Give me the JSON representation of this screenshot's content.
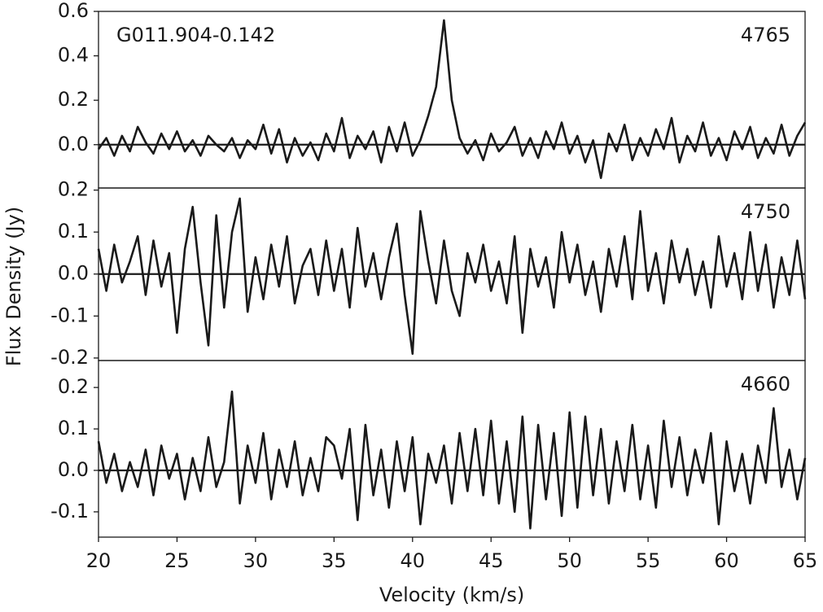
{
  "chart_data": [
    {
      "type": "line",
      "source": "G011.904-0.142",
      "label": "4765",
      "color": "#1a1a1a",
      "xlim": [
        20,
        65
      ],
      "ylim": [
        -0.195,
        0.6
      ],
      "yticks": [
        {
          "value": 0,
          "label": "0.0"
        },
        {
          "value": 0.2,
          "label": "0.2"
        },
        {
          "value": 0.4,
          "label": "0.4"
        },
        {
          "value": 0.6,
          "label": "0.6"
        }
      ],
      "x": [
        20,
        20.5,
        21,
        21.5,
        22,
        22.5,
        23,
        23.5,
        24,
        24.5,
        25,
        25.5,
        26,
        26.5,
        27,
        27.5,
        28,
        28.5,
        29,
        29.5,
        30,
        30.5,
        31,
        31.5,
        32,
        32.5,
        33,
        33.5,
        34,
        34.5,
        35,
        35.5,
        36,
        36.5,
        37,
        37.5,
        38,
        38.5,
        39,
        39.5,
        40,
        40.5,
        41,
        41.5,
        42,
        42.5,
        43,
        43.5,
        44,
        44.5,
        45,
        45.5,
        46,
        46.5,
        47,
        47.5,
        48,
        48.5,
        49,
        49.5,
        50,
        50.5,
        51,
        51.5,
        52,
        52.5,
        53,
        53.5,
        54,
        54.5,
        55,
        55.5,
        56,
        56.5,
        57,
        57.5,
        58,
        58.5,
        59,
        59.5,
        60,
        60.5,
        61,
        61.5,
        62,
        62.5,
        63,
        63.5,
        64,
        64.5,
        65
      ],
      "values": [
        -0.02,
        0.03,
        -0.05,
        0.04,
        -0.03,
        0.08,
        0.01,
        -0.04,
        0.05,
        -0.02,
        0.06,
        -0.03,
        0.02,
        -0.05,
        0.04,
        0.0,
        -0.03,
        0.03,
        -0.06,
        0.02,
        -0.02,
        0.09,
        -0.04,
        0.07,
        -0.08,
        0.03,
        -0.05,
        0.01,
        -0.07,
        0.05,
        -0.03,
        0.12,
        -0.06,
        0.04,
        -0.02,
        0.06,
        -0.08,
        0.08,
        -0.03,
        0.1,
        -0.05,
        0.02,
        0.13,
        0.26,
        0.56,
        0.2,
        0.03,
        -0.04,
        0.02,
        -0.07,
        0.05,
        -0.03,
        0.01,
        0.08,
        -0.05,
        0.03,
        -0.06,
        0.06,
        -0.02,
        0.1,
        -0.04,
        0.04,
        -0.08,
        0.02,
        -0.15,
        0.05,
        -0.03,
        0.09,
        -0.07,
        0.03,
        -0.05,
        0.07,
        -0.02,
        0.12,
        -0.08,
        0.04,
        -0.03,
        0.1,
        -0.05,
        0.03,
        -0.07,
        0.06,
        -0.02,
        0.08,
        -0.06,
        0.03,
        -0.04,
        0.09,
        -0.05,
        0.04,
        0.1
      ]
    },
    {
      "type": "line",
      "label": "4750",
      "ylabel": "Flux Density (Jy)",
      "color": "#1a1a1a",
      "xlim": [
        20,
        65
      ],
      "ylim": [
        -0.206,
        0.205
      ],
      "yticks": [
        {
          "value": -0.2,
          "label": "-0.2"
        },
        {
          "value": -0.1,
          "label": "-0.1"
        },
        {
          "value": 0,
          "label": "0.0"
        },
        {
          "value": 0.1,
          "label": "0.1"
        },
        {
          "value": 0.2,
          "label": "0.2"
        }
      ],
      "x": [
        20,
        20.5,
        21,
        21.5,
        22,
        22.5,
        23,
        23.5,
        24,
        24.5,
        25,
        25.5,
        26,
        26.5,
        27,
        27.5,
        28,
        28.5,
        29,
        29.5,
        30,
        30.5,
        31,
        31.5,
        32,
        32.5,
        33,
        33.5,
        34,
        34.5,
        35,
        35.5,
        36,
        36.5,
        37,
        37.5,
        38,
        38.5,
        39,
        39.5,
        40,
        40.5,
        41,
        41.5,
        42,
        42.5,
        43,
        43.5,
        44,
        44.5,
        45,
        45.5,
        46,
        46.5,
        47,
        47.5,
        48,
        48.5,
        49,
        49.5,
        50,
        50.5,
        51,
        51.5,
        52,
        52.5,
        53,
        53.5,
        54,
        54.5,
        55,
        55.5,
        56,
        56.5,
        57,
        57.5,
        58,
        58.5,
        59,
        59.5,
        60,
        60.5,
        61,
        61.5,
        62,
        62.5,
        63,
        63.5,
        64,
        64.5,
        65
      ],
      "values": [
        0.06,
        -0.04,
        0.07,
        -0.02,
        0.03,
        0.09,
        -0.05,
        0.08,
        -0.03,
        0.05,
        -0.14,
        0.06,
        0.16,
        -0.02,
        -0.17,
        0.14,
        -0.08,
        0.1,
        0.18,
        -0.09,
        0.04,
        -0.06,
        0.07,
        -0.03,
        0.09,
        -0.07,
        0.02,
        0.06,
        -0.05,
        0.08,
        -0.04,
        0.06,
        -0.08,
        0.11,
        -0.03,
        0.05,
        -0.06,
        0.04,
        0.12,
        -0.05,
        -0.19,
        0.15,
        0.03,
        -0.07,
        0.08,
        -0.04,
        -0.1,
        0.05,
        -0.02,
        0.07,
        -0.04,
        0.03,
        -0.07,
        0.09,
        -0.14,
        0.06,
        -0.03,
        0.04,
        -0.08,
        0.1,
        -0.02,
        0.07,
        -0.05,
        0.03,
        -0.09,
        0.06,
        -0.03,
        0.09,
        -0.06,
        0.15,
        -0.04,
        0.05,
        -0.07,
        0.08,
        -0.02,
        0.06,
        -0.05,
        0.03,
        -0.08,
        0.09,
        -0.03,
        0.05,
        -0.06,
        0.1,
        -0.04,
        0.07,
        -0.08,
        0.04,
        -0.05,
        0.08,
        -0.06
      ]
    },
    {
      "type": "line",
      "label": "4660",
      "xlabel": "Velocity (km/s)",
      "color": "#1a1a1a",
      "xlim": [
        20,
        65
      ],
      "ylim": [
        -0.161,
        0.265
      ],
      "xticks": [
        20,
        25,
        30,
        35,
        40,
        45,
        50,
        55,
        60,
        65
      ],
      "yticks": [
        {
          "value": -0.1,
          "label": "-0.1"
        },
        {
          "value": 0,
          "label": "0.0"
        },
        {
          "value": 0.1,
          "label": "0.1"
        },
        {
          "value": 0.2,
          "label": "0.2"
        }
      ],
      "x": [
        20,
        20.5,
        21,
        21.5,
        22,
        22.5,
        23,
        23.5,
        24,
        24.5,
        25,
        25.5,
        26,
        26.5,
        27,
        27.5,
        28,
        28.5,
        29,
        29.5,
        30,
        30.5,
        31,
        31.5,
        32,
        32.5,
        33,
        33.5,
        34,
        34.5,
        35,
        35.5,
        36,
        36.5,
        37,
        37.5,
        38,
        38.5,
        39,
        39.5,
        40,
        40.5,
        41,
        41.5,
        42,
        42.5,
        43,
        43.5,
        44,
        44.5,
        45,
        45.5,
        46,
        46.5,
        47,
        47.5,
        48,
        48.5,
        49,
        49.5,
        50,
        50.5,
        51,
        51.5,
        52,
        52.5,
        53,
        53.5,
        54,
        54.5,
        55,
        55.5,
        56,
        56.5,
        57,
        57.5,
        58,
        58.5,
        59,
        59.5,
        60,
        60.5,
        61,
        61.5,
        62,
        62.5,
        63,
        63.5,
        64,
        64.5,
        65
      ],
      "values": [
        0.07,
        -0.03,
        0.04,
        -0.05,
        0.02,
        -0.04,
        0.05,
        -0.06,
        0.06,
        -0.02,
        0.04,
        -0.07,
        0.03,
        -0.05,
        0.08,
        -0.04,
        0.02,
        0.19,
        -0.08,
        0.06,
        -0.03,
        0.09,
        -0.07,
        0.05,
        -0.04,
        0.07,
        -0.06,
        0.03,
        -0.05,
        0.08,
        0.06,
        -0.02,
        0.1,
        -0.12,
        0.11,
        -0.06,
        0.05,
        -0.09,
        0.07,
        -0.05,
        0.08,
        -0.13,
        0.04,
        -0.03,
        0.06,
        -0.08,
        0.09,
        -0.05,
        0.1,
        -0.06,
        0.12,
        -0.08,
        0.07,
        -0.1,
        0.13,
        -0.14,
        0.11,
        -0.07,
        0.09,
        -0.11,
        0.14,
        -0.09,
        0.13,
        -0.06,
        0.1,
        -0.08,
        0.07,
        -0.05,
        0.11,
        -0.07,
        0.06,
        -0.09,
        0.12,
        -0.04,
        0.08,
        -0.06,
        0.05,
        -0.03,
        0.09,
        -0.13,
        0.07,
        -0.05,
        0.04,
        -0.08,
        0.06,
        -0.03,
        0.15,
        -0.04,
        0.05,
        -0.07,
        0.03
      ]
    }
  ]
}
